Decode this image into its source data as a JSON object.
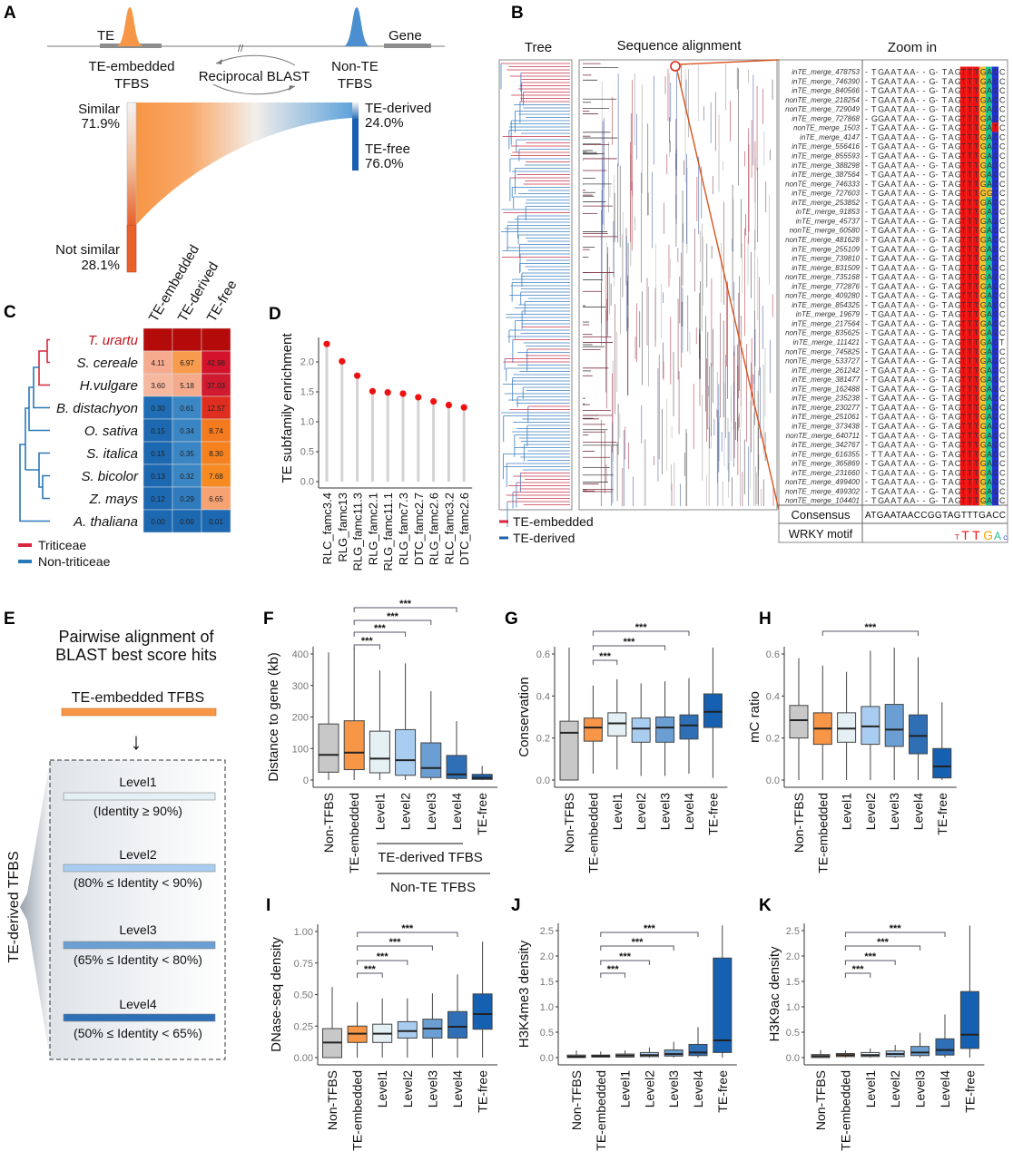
{
  "panel_letters": {
    "a": "A",
    "b": "B",
    "c": "C",
    "d": "D",
    "e": "E",
    "f": "F",
    "g": "G",
    "h": "H",
    "i": "I",
    "j": "J",
    "k": "K"
  },
  "panel_a": {
    "te_label": "TE",
    "gene_label": "Gene",
    "break_mark": "//",
    "te_embedded_line1": "TE-embedded",
    "te_embedded_line2": "TFBS",
    "blast_label": "Reciprocal BLAST",
    "non_te_line1": "Non-TE",
    "non_te_line2": "TFBS",
    "similar_label": "Similar",
    "similar_pct": "71.9%",
    "not_similar_label": "Not similar",
    "not_similar_pct": "28.1%",
    "te_derived_label": "TE-derived",
    "te_derived_pct": "24.0%",
    "te_free_label": "TE-free",
    "te_free_pct": "76.0%",
    "similar_fraction": 0.719,
    "te_derived_fraction": 0.24
  },
  "panel_b": {
    "tree_title": "Tree",
    "alignment_title": "Sequence alignment",
    "zoom_title": "Zoom in",
    "legend": [
      {
        "label": "TE-embedded",
        "color": "#d7263d"
      },
      {
        "label": "TE-derived",
        "color": "#1f5fa8"
      }
    ],
    "consensus_label": "Consensus",
    "consensus_seq": "ATGAATAACCGGTAGTTTGACC",
    "motif_label": "WRKY motif",
    "motif_logo": "TTTGAC",
    "rows": [
      [
        "inTE_merge_478753",
        "-TGAATAA--G-TAGTTTGACC"
      ],
      [
        "inTE_merge_746390",
        "-TGAATAA--G-TAGTTTGACC"
      ],
      [
        "inTE_merge_840566",
        "-TGAATAA--G-TAGTTTGACC"
      ],
      [
        "nonTE_merge_218254",
        "-TGAATAA--G-TAGTTTGACC"
      ],
      [
        "nonTE_merge_729049",
        "-TGAATAA--G-TAGTTTGACC"
      ],
      [
        "inTE_merge_727868",
        "-GGAATAA--G-TAGTTTGACC"
      ],
      [
        "nonTE_merge_1503",
        "-TGAATAA--G-TAGTTTGATC"
      ],
      [
        "inTE_merge_4147",
        "-TGAATAA--G-TAGTTTGACC"
      ],
      [
        "inTE_merge_556416",
        "-TGAATAA--G-TAGTTTGACC"
      ],
      [
        "inTE_merge_855593",
        "-TGAATAA--G-TAGTTTGACC"
      ],
      [
        "inTE_merge_388298",
        "-TGAATAA--G-TAGTTTGACC"
      ],
      [
        "inTE_merge_387564",
        "-TGAATAA--G-TAGTTTGACC"
      ],
      [
        "nonTE_merge_746333",
        "-TGAATAA--G-TAGTTTGACC"
      ],
      [
        "inTE_merge_727603",
        "-TGAATAA--G-TAGTTTGGCC"
      ],
      [
        "inTE_merge_253852",
        "-TGAATAA--G-TAGTTTGACC"
      ],
      [
        "inTE_merge_91853",
        "-TGAATAA--G-TAGTTTGACC"
      ],
      [
        "inTE_merge_45737",
        "-TGAATAA--G-TAGTTTGACC"
      ],
      [
        "nonTE_merge_60580",
        "-TGAATAA--G-TAGTTTGACC"
      ],
      [
        "nonTE_merge_481628",
        "-TGAATAA--G-TAGTTTGACC"
      ],
      [
        "inTE_merge_255109",
        "-TGAATAA--G-TAGTTTGACC"
      ],
      [
        "inTE_merge_739810",
        "-TGAATAA--G-TAGTTTGACC"
      ],
      [
        "inTE_merge_831509",
        "-TGAATAA--G-TAGTTTGACC"
      ],
      [
        "nonTE_merge_735168",
        "-TGAATAA--G-TAGTTTGACC"
      ],
      [
        "inTE_merge_772876",
        "-TGAATAA--G-TAGTTTGACC"
      ],
      [
        "nonTE_merge_409280",
        "-TGAATAA--G-TAGTTTGACC"
      ],
      [
        "inTE_merge_854325",
        "-TGAATAA--G-TAGTTTGACC"
      ],
      [
        "inTE_merge_19679",
        "-TGAATAA--G-TAGTTTGACC"
      ],
      [
        "inTE_merge_217564",
        "-TGAATAA--G-TAGTTTGACC"
      ],
      [
        "nonTE_merge_835625",
        "-TGAATAA--G-TAGTTTGACC"
      ],
      [
        "inTE_merge_111421",
        "-TGAATAA--G-TAGTTTGACT"
      ],
      [
        "nonTE_merge_745825",
        "-TGAATAA--G-TAGTTTGACC"
      ],
      [
        "nonTE_merge_533727",
        "-TGAATAA--G-TAGTTTGACC"
      ],
      [
        "inTE_merge_261242",
        "-TGAATAA--G-TAGTTTGACC"
      ],
      [
        "inTE_merge_381477",
        "-TGAATAA--G-TAGTTTGACC"
      ],
      [
        "inTE_merge_162488",
        "-TGAATAA--G-TAGTTTGACC"
      ],
      [
        "inTE_merge_235238",
        "-TGAATAA--G-TAGTTTGACC"
      ],
      [
        "inTE_merge_230277",
        "-TGAATAA--G-TAGTTTGACC"
      ],
      [
        "inTE_merge_251061",
        "-TGAATAA--G-TAGTTTGACC"
      ],
      [
        "inTE_merge_373438",
        "-TGAATAA--G-TAGTTTGACC"
      ],
      [
        "nonTE_merge_640711",
        "-TGAATAA--G-TAGTTTGACC"
      ],
      [
        "inTE_merge_342767",
        "-TGAATAA--G-TAGTTTGACC"
      ],
      [
        "inTE_merge_616355",
        "-TTAATAA--G-TAGTTTGACC"
      ],
      [
        "inTE_merge_365869",
        "-TGAATAA--G-TACTTTGACC"
      ],
      [
        "inTE_merge_231660",
        "-TGAATAA--G-TAGTTTGACC"
      ],
      [
        "nonTE_merge_499400",
        "-TGAATAA--G-TAGTTTGACC"
      ],
      [
        "nonTE_merge_499302",
        "-TGAATAA--G-TAGTTTGACC"
      ],
      [
        "nonTE_merge_104401",
        "-TGAATAA--G-TAGTTTGACC"
      ]
    ],
    "base_colors": {
      "T": "#f01010",
      "G": "#f5c431",
      "A": "#1fc08e",
      "C": "#2230d8"
    }
  },
  "panel_c": {
    "legend": [
      {
        "label": "Triticeae",
        "color": "#d7263d"
      },
      {
        "label": "Non-triticeae",
        "color": "#2a78b8"
      }
    ]
  },
  "panel_e": {
    "title_line1": "Pairwise alignment of",
    "title_line2": "BLAST best score hits",
    "source_label": "TE-embedded TFBS",
    "arrow": "↓",
    "side_label": "TE-derived TFBS",
    "levels": [
      {
        "name": "Level1",
        "range": "(Identity ≥ 90%)",
        "color": "#e4f0f3"
      },
      {
        "name": "Level2",
        "range": "(80% ≤ Identity < 90%)",
        "color": "#a9cdf0"
      },
      {
        "name": "Level3",
        "range": "(65% ≤ Identity < 80%)",
        "color": "#6b9fd3"
      },
      {
        "name": "Level4",
        "range": "(50% ≤ Identity < 65%)",
        "color": "#2e6fb6"
      }
    ]
  },
  "panel_f_groups": {
    "te_derived": "TE-derived TFBS",
    "non_te": "Non-TE TFBS"
  },
  "box_colors": [
    "#c8c8c8",
    "#f79646",
    "#e4f0f3",
    "#a9cdf0",
    "#6b9fd3",
    "#2e6fb6",
    "#1560b0"
  ],
  "chart_data": [
    {
      "id": "C",
      "type": "heatmap",
      "columns": [
        "TE-embedded",
        "TE-derived",
        "TE-free"
      ],
      "rows": [
        "T. urartu",
        "S. cereale",
        "H.vulgare",
        "B. distachyon",
        "O. sativa",
        "S. italica",
        "S. bicolor",
        "Z. mays",
        "A. thaliana"
      ],
      "row_colors": [
        "#c0141c",
        "#111",
        "#111",
        "#111",
        "#111",
        "#111",
        "#111",
        "#111",
        "#111"
      ],
      "values": [
        [
          null,
          null,
          null
        ],
        [
          4.11,
          6.97,
          42.98
        ],
        [
          3.6,
          5.18,
          37.03
        ],
        [
          0.3,
          0.61,
          12.57
        ],
        [
          0.15,
          0.34,
          8.74
        ],
        [
          0.15,
          0.35,
          8.3
        ],
        [
          0.13,
          0.32,
          7.68
        ],
        [
          0.12,
          0.29,
          6.65
        ],
        [
          0.0,
          0.0,
          0.01
        ]
      ],
      "labels": [
        [
          "",
          "",
          ""
        ],
        [
          "4.11",
          "6.97",
          "42.98"
        ],
        [
          "3.60",
          "5.18",
          "37.03"
        ],
        [
          "0.30",
          "0.61",
          "12.57"
        ],
        [
          "0.15",
          "0.34",
          "8.74"
        ],
        [
          "0.15",
          "0.35",
          "8.30"
        ],
        [
          "0.13",
          "0.32",
          "7.68"
        ],
        [
          "0.12",
          "0.29",
          "6.65"
        ],
        [
          "0.00",
          "0.00",
          "0.01"
        ]
      ],
      "cell_colors": [
        [
          "#b40a0a",
          "#b40a0a",
          "#b40a0a"
        ],
        [
          "#f6ab8e",
          "#f99b4c",
          "#d5122c"
        ],
        [
          "#f7b8a0",
          "#f5aa8c",
          "#d01a30"
        ],
        [
          "#1f6db4",
          "#3b87c5",
          "#df2e20"
        ],
        [
          "#1c68b1",
          "#3a86c4",
          "#f47a1f"
        ],
        [
          "#1c68b1",
          "#3a86c4",
          "#f5821f"
        ],
        [
          "#1c68b1",
          "#3a86c4",
          "#f88a22"
        ],
        [
          "#1c68b1",
          "#2f7bbd",
          "#f6a272"
        ],
        [
          "#1c68b1",
          "#1c68b1",
          "#1c68b1"
        ]
      ]
    },
    {
      "id": "D",
      "type": "lollipop",
      "ylabel": "TE subfamily enrichment",
      "categories": [
        "RLC_famc3.4",
        "RLG_famc13",
        "RLG_famc11.3",
        "RLG_famc2.1",
        "RLG_famc11.1",
        "RLG_famc7.3",
        "DTC_famc2.7",
        "RLG_famc2.6",
        "RLC_famc3.2",
        "DTC_famc2.6"
      ],
      "values": [
        2.3,
        2.01,
        1.77,
        1.51,
        1.49,
        1.47,
        1.41,
        1.34,
        1.28,
        1.24
      ],
      "yticks": [
        "0.0",
        "0.5",
        "1.0",
        "1.5",
        "2.0"
      ],
      "ylim": [
        0,
        2.4
      ],
      "point_color": "#ee1111"
    },
    {
      "id": "F",
      "type": "box",
      "ylabel": "Distance to gene (kb)",
      "categories": [
        "Non-TFBS",
        "TE-embedded",
        "Level1",
        "Level2",
        "Level3",
        "Level4",
        "TE-free"
      ],
      "yticks": [
        "0",
        "100",
        "200",
        "300",
        "400"
      ],
      "ylim": [
        0,
        400
      ],
      "stats": [
        [
          0,
          25,
          80,
          178,
          405
        ],
        [
          0,
          33,
          87,
          188,
          420
        ],
        [
          0,
          23,
          68,
          155,
          348
        ],
        [
          0,
          15,
          63,
          160,
          370
        ],
        [
          0,
          8,
          38,
          118,
          282
        ],
        [
          0,
          5,
          18,
          78,
          187
        ],
        [
          0,
          2,
          7,
          18,
          45
        ]
      ],
      "comparisons": [
        {
          "to": "Level1",
          "label": "***"
        },
        {
          "to": "Level2",
          "label": "***"
        },
        {
          "to": "Level3",
          "label": "***"
        },
        {
          "to": "Level4",
          "label": "***"
        }
      ]
    },
    {
      "id": "G",
      "type": "box",
      "ylabel": "Conservation",
      "categories": [
        "Non-TFBS",
        "TE-embedded",
        "Level1",
        "Level2",
        "Level3",
        "Level4",
        "TE-free"
      ],
      "yticks": [
        "0.0",
        "0.2",
        "0.4",
        "0.6"
      ],
      "ylim": [
        0,
        0.6
      ],
      "stats": [
        [
          0,
          0,
          0.225,
          0.28,
          0.63
        ],
        [
          0.03,
          0.185,
          0.25,
          0.295,
          0.45
        ],
        [
          0.05,
          0.21,
          0.27,
          0.32,
          0.48
        ],
        [
          0.02,
          0.18,
          0.245,
          0.295,
          0.46
        ],
        [
          0.02,
          0.18,
          0.25,
          0.3,
          0.47
        ],
        [
          0.03,
          0.195,
          0.26,
          0.31,
          0.485
        ],
        [
          0.01,
          0.25,
          0.325,
          0.41,
          0.63
        ]
      ],
      "comparisons": [
        {
          "to": "Level1",
          "label": "***"
        },
        {
          "to": "Level3",
          "label": "***"
        },
        {
          "to": "Level4",
          "label": "***"
        }
      ]
    },
    {
      "id": "H",
      "type": "box",
      "ylabel": "mC ratio",
      "categories": [
        "Non-TFBS",
        "TE-embedded",
        "Level1",
        "Level2",
        "Level3",
        "Level4",
        "TE-free"
      ],
      "yticks": [
        "0.0",
        "0.2",
        "0.4",
        "0.6"
      ],
      "ylim": [
        0,
        0.6
      ],
      "stats": [
        [
          0,
          0.2,
          0.285,
          0.355,
          0.58
        ],
        [
          0,
          0.17,
          0.245,
          0.32,
          0.545
        ],
        [
          0,
          0.18,
          0.245,
          0.32,
          0.515
        ],
        [
          0,
          0.17,
          0.255,
          0.35,
          0.615
        ],
        [
          0,
          0.16,
          0.24,
          0.36,
          0.63
        ],
        [
          0,
          0.125,
          0.21,
          0.31,
          0.585
        ],
        [
          0,
          0.01,
          0.065,
          0.15,
          0.37
        ]
      ],
      "comparisons": [
        {
          "to": "Level4",
          "label": "***"
        }
      ]
    },
    {
      "id": "I",
      "type": "box",
      "ylabel": "DNase-seq density",
      "categories": [
        "Non-TFBS",
        "TE-embedded",
        "Level1",
        "Level2",
        "Level3",
        "Level4",
        "TE-free"
      ],
      "yticks": [
        "0.00",
        "0.25",
        "0.50",
        "0.75",
        "1.00"
      ],
      "ylim": [
        0,
        1.0
      ],
      "stats": [
        [
          0,
          0,
          0.12,
          0.23,
          0.56
        ],
        [
          0,
          0.12,
          0.19,
          0.25,
          0.44
        ],
        [
          0,
          0.12,
          0.19,
          0.265,
          0.47
        ],
        [
          0,
          0.155,
          0.21,
          0.285,
          0.47
        ],
        [
          0,
          0.155,
          0.23,
          0.305,
          0.51
        ],
        [
          0,
          0.155,
          0.245,
          0.365,
          0.66
        ],
        [
          0,
          0.225,
          0.345,
          0.505,
          0.92
        ]
      ],
      "comparisons": [
        {
          "to": "Level1",
          "label": "***"
        },
        {
          "to": "Level2",
          "label": "***"
        },
        {
          "to": "Level3",
          "label": "***"
        },
        {
          "to": "Level4",
          "label": "***"
        }
      ]
    },
    {
      "id": "J",
      "type": "box",
      "ylabel": "H3K4me3 density",
      "categories": [
        "Non-TFBS",
        "TE-embedded",
        "Level1",
        "Level2",
        "Level3",
        "Level4",
        "TE-free"
      ],
      "yticks": [
        "0.0",
        "0.5",
        "1.0",
        "1.5",
        "2.0",
        "2.5"
      ],
      "ylim": [
        0,
        2.5
      ],
      "stats": [
        [
          0,
          0,
          0.02,
          0.05,
          0.14
        ],
        [
          0,
          0.01,
          0.03,
          0.05,
          0.12
        ],
        [
          0,
          0.01,
          0.04,
          0.07,
          0.14
        ],
        [
          0,
          0.02,
          0.05,
          0.1,
          0.2
        ],
        [
          0,
          0.03,
          0.07,
          0.15,
          0.31
        ],
        [
          0,
          0.04,
          0.1,
          0.26,
          0.6
        ],
        [
          0,
          0.1,
          0.34,
          1.96,
          2.6
        ]
      ],
      "comparisons": [
        {
          "to": "Level1",
          "label": "***"
        },
        {
          "to": "Level2",
          "label": "***"
        },
        {
          "to": "Level3",
          "label": "***"
        },
        {
          "to": "Level4",
          "label": "***"
        }
      ]
    },
    {
      "id": "K",
      "type": "box",
      "ylabel": "H3K9ac density",
      "categories": [
        "Non-TFBS",
        "TE-embedded",
        "Level1",
        "Level2",
        "Level3",
        "Level4",
        "TE-free"
      ],
      "yticks": [
        "0.0",
        "0.5",
        "1.0",
        "1.5",
        "2.0",
        "2.5"
      ],
      "ylim": [
        0,
        2.5
      ],
      "stats": [
        [
          0,
          0,
          0.03,
          0.06,
          0.15
        ],
        [
          0,
          0.02,
          0.05,
          0.08,
          0.14
        ],
        [
          0,
          0.02,
          0.05,
          0.1,
          0.18
        ],
        [
          0,
          0.02,
          0.07,
          0.13,
          0.25
        ],
        [
          0,
          0.04,
          0.1,
          0.22,
          0.49
        ],
        [
          0,
          0.05,
          0.15,
          0.37,
          0.85
        ],
        [
          0,
          0.18,
          0.45,
          1.3,
          2.6
        ]
      ],
      "comparisons": [
        {
          "to": "Level1",
          "label": "***"
        },
        {
          "to": "Level2",
          "label": "***"
        },
        {
          "to": "Level3",
          "label": "***"
        },
        {
          "to": "Level4",
          "label": "***"
        }
      ]
    }
  ]
}
